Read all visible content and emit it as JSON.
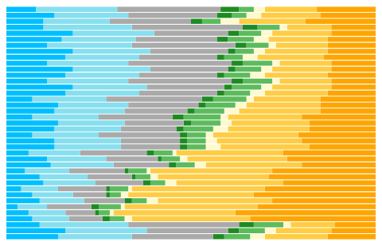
{
  "chart_data": {
    "type": "bar",
    "orientation": "horizontal",
    "stacked": true,
    "grid": false,
    "tick_labels": false,
    "xlim": [
      0,
      100
    ],
    "categories": [
      null,
      null,
      null,
      null,
      null,
      null,
      null,
      null,
      null,
      null,
      null,
      null,
      null,
      null,
      null,
      null,
      null,
      null,
      null,
      null,
      null,
      null,
      null,
      null,
      null,
      null,
      null,
      null,
      null,
      null,
      null,
      null,
      null,
      null,
      null,
      null,
      null,
      null,
      null
    ],
    "series": [
      {
        "color": "#00BFFF",
        "values": [
          8,
          13,
          10,
          10,
          18,
          15,
          11,
          18,
          16,
          11,
          18,
          16,
          11,
          18,
          16,
          7,
          14,
          13,
          7,
          14,
          13,
          7,
          13,
          13,
          6,
          11,
          12,
          5,
          9,
          10,
          4,
          7,
          9,
          3,
          6,
          7,
          9,
          16,
          14
        ]
      },
      {
        "color": "#87DFEF",
        "values": [
          22,
          20,
          18,
          24,
          22,
          20,
          23,
          21,
          20,
          22,
          21,
          20,
          22,
          20,
          20,
          20,
          19,
          19,
          18,
          18,
          18,
          18,
          18,
          18,
          14,
          16,
          17,
          12,
          13,
          14,
          10,
          11,
          12,
          8,
          10,
          10,
          24,
          22,
          20
        ]
      },
      {
        "color": "#AAAAAA",
        "values": [
          28,
          24,
          22,
          30,
          20,
          22,
          28,
          21,
          21,
          28,
          21,
          21,
          28,
          21,
          21,
          26,
          19,
          17,
          20,
          16,
          15,
          22,
          16,
          16,
          18,
          14,
          15,
          15,
          12,
          13,
          13,
          9,
          11,
          12,
          8,
          9,
          30,
          22,
          22
        ]
      },
      {
        "color": "#1E8B22",
        "values": [
          5,
          4,
          3,
          4,
          3,
          3,
          3,
          2,
          2,
          3,
          2,
          2,
          3,
          2,
          2,
          3,
          2,
          2,
          3,
          2,
          2,
          2,
          2,
          2,
          2,
          1,
          2,
          1,
          1,
          2,
          1,
          1,
          2,
          2,
          1,
          2,
          4,
          3,
          3
        ]
      },
      {
        "color": "#5DBB5D",
        "values": [
          4,
          4,
          5,
          6,
          6,
          7,
          6,
          5,
          5,
          8,
          7,
          7,
          8,
          8,
          7,
          9,
          8,
          8,
          10,
          8,
          8,
          5,
          5,
          5,
          5,
          5,
          5,
          5,
          4,
          4,
          5,
          3,
          4,
          6,
          3,
          4,
          8,
          7,
          7
        ]
      },
      {
        "color": "#FFFACD",
        "values": [
          3,
          4,
          5,
          2,
          3,
          4,
          2,
          3,
          4,
          2,
          3,
          4,
          2,
          3,
          4,
          2,
          3,
          4,
          2,
          3,
          4,
          2,
          3,
          4,
          1,
          2,
          3,
          1,
          2,
          3,
          1,
          2,
          3,
          1,
          1,
          2,
          2,
          3,
          4
        ]
      },
      {
        "color": "#FFCC44",
        "values": [
          14,
          16,
          18,
          12,
          16,
          16,
          14,
          17,
          18,
          14,
          16,
          17,
          14,
          16,
          17,
          18,
          20,
          22,
          20,
          21,
          22,
          23,
          23,
          24,
          29,
          27,
          26,
          33,
          30,
          29,
          36,
          34,
          31,
          36,
          33,
          32,
          12,
          15,
          17
        ]
      },
      {
        "color": "#FFA500",
        "values": [
          16,
          15,
          19,
          12,
          12,
          13,
          13,
          13,
          14,
          12,
          12,
          13,
          12,
          12,
          13,
          15,
          15,
          15,
          20,
          18,
          18,
          21,
          20,
          18,
          25,
          24,
          20,
          28,
          29,
          25,
          30,
          33,
          28,
          32,
          38,
          34,
          11,
          12,
          13
        ]
      }
    ]
  }
}
